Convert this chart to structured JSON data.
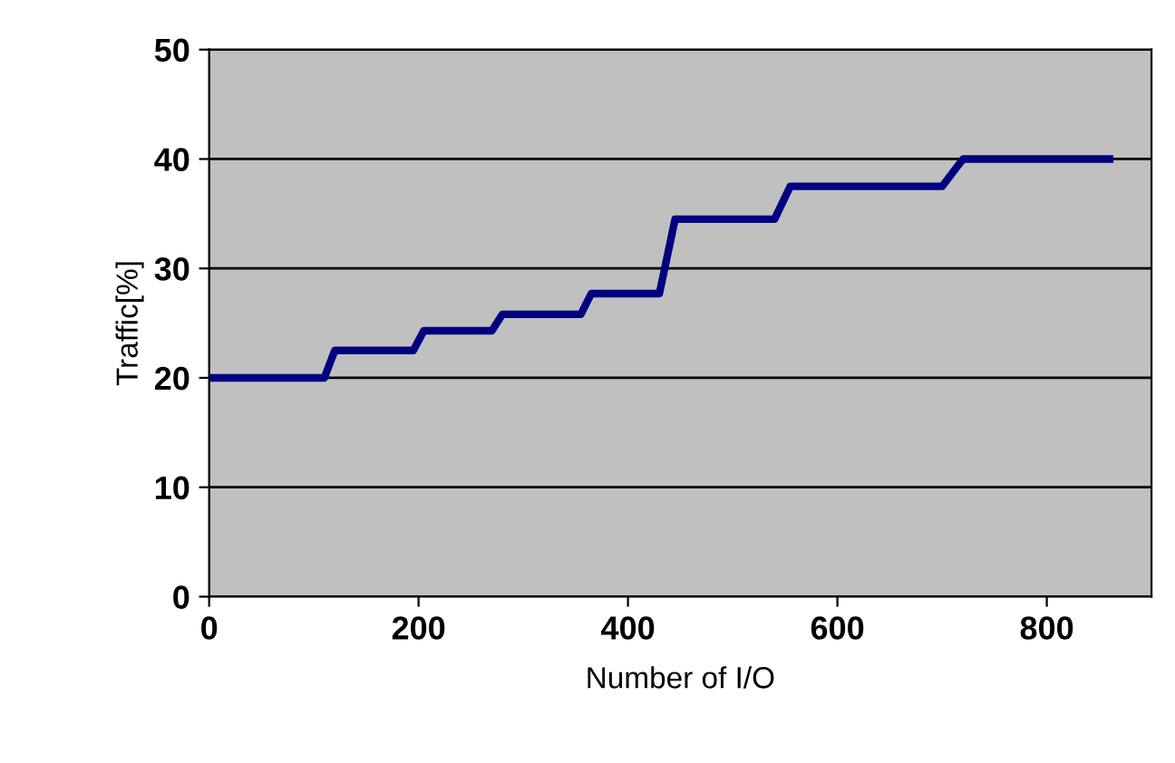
{
  "chart_data": {
    "type": "line",
    "xlabel": "Number of I/O",
    "ylabel": "Traffic[%]",
    "series": [
      {
        "color": "#000080",
        "x": [
          0,
          110,
          120,
          195,
          205,
          270,
          280,
          355,
          365,
          430,
          445,
          540,
          555,
          700,
          720,
          860
        ],
        "values": [
          20,
          20,
          22.5,
          22.5,
          24.3,
          24.3,
          25.8,
          25.8,
          27.7,
          27.7,
          34.5,
          34.5,
          37.5,
          37.5,
          40,
          40
        ]
      }
    ],
    "xlim": [
      0,
      900
    ],
    "xticks": [
      0,
      200,
      400,
      600,
      800
    ],
    "ylim": [
      0,
      50
    ],
    "yticks": [
      0,
      10,
      20,
      30,
      40,
      50
    ],
    "grid": "y",
    "marker": "none",
    "line_style": "solid",
    "legend": false
  }
}
